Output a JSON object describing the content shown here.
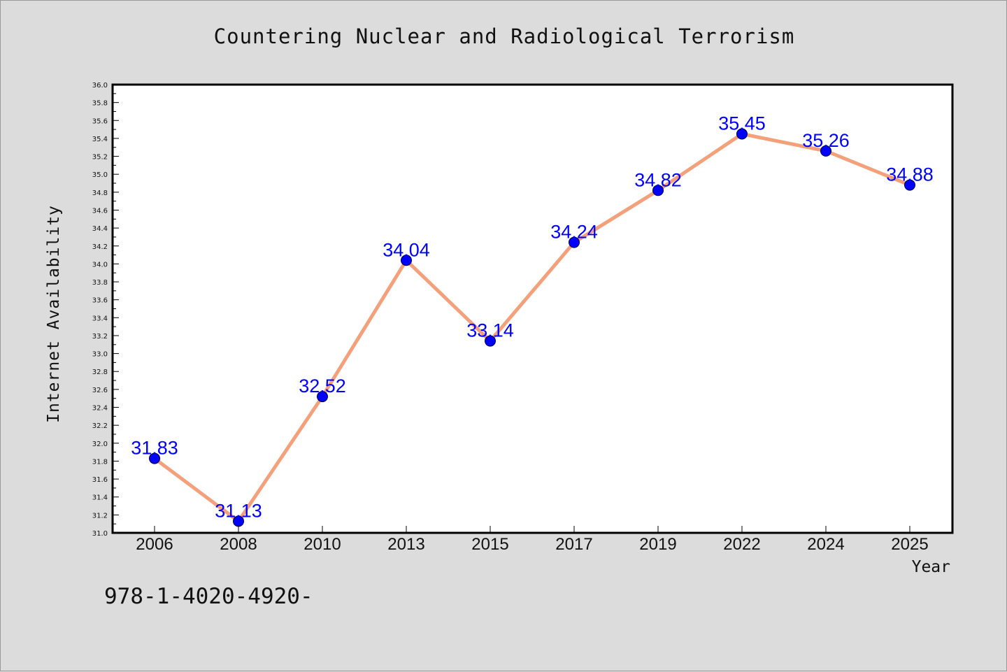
{
  "chart_data": {
    "type": "line",
    "title": "Countering Nuclear and Radiological Terrorism",
    "xlabel": "Year",
    "ylabel": "Internet Availability",
    "categories": [
      "2006",
      "2008",
      "2010",
      "2013",
      "2015",
      "2017",
      "2019",
      "2022",
      "2024",
      "2025"
    ],
    "series": [
      {
        "values": [
          31.83,
          31.13,
          32.52,
          34.04,
          33.14,
          34.24,
          34.82,
          35.45,
          35.26,
          34.88
        ]
      }
    ],
    "data_labels": [
      "31.83",
      "31.13",
      "32.52",
      "34.04",
      "33.14",
      "34.24",
      "34.82",
      "35.45",
      "35.26",
      "34.88"
    ],
    "ylim": [
      31.0,
      36.0
    ],
    "y_ticks": [
      "31.0",
      "31.2",
      "31.4",
      "31.6",
      "31.8",
      "32.0",
      "32.2",
      "32.4",
      "32.6",
      "32.8",
      "33.0",
      "33.2",
      "33.4",
      "33.6",
      "33.8",
      "34.0",
      "34.2",
      "34.4",
      "34.6",
      "34.8",
      "35.0",
      "35.2",
      "35.4",
      "35.6",
      "35.8",
      "36.0"
    ],
    "grid": false,
    "legend": "none",
    "colors": {
      "line": "#f4a07a",
      "marker": "#0000ff",
      "label": "#0000ff",
      "background": "#dcdcdc",
      "plot_background": "#ffffff"
    }
  },
  "footnote": "978-1-4020-4920-"
}
